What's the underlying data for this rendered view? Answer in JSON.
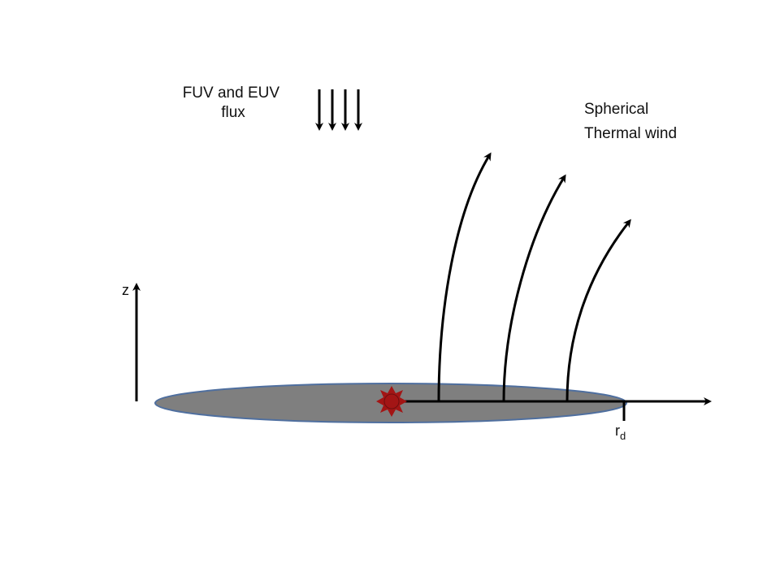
{
  "flux_label": {
    "line1": "FUV and EUV",
    "line2": "flux"
  },
  "wind_label": {
    "line1": "Spherical",
    "line2": "Thermal wind"
  },
  "z_axis_label": "z",
  "radius_label": {
    "main": "r",
    "subscript": "d"
  },
  "colors": {
    "disk_fill": "#7f7f7f",
    "disk_edge": "#4f6f9f",
    "star": "#a31515",
    "arrows": "#000000"
  }
}
